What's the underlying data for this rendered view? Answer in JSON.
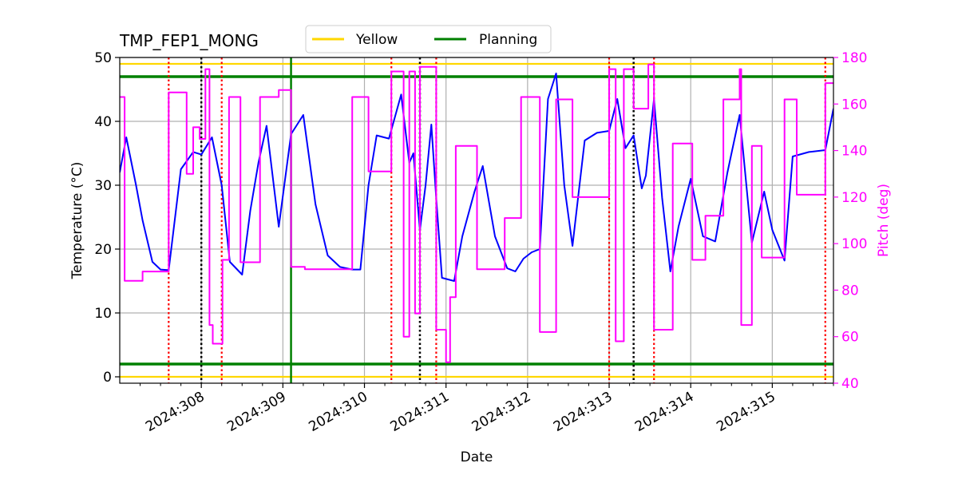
{
  "chart_data": {
    "type": "line",
    "title": "TMP_FEP1_MONG",
    "xlabel": "Date",
    "ylabel": "Temperature ($^\\circ$C)",
    "ylabel_display": "Temperature (°C)",
    "y2label": "Pitch (deg)",
    "xlim": [
      307.0,
      315.75
    ],
    "ylim": [
      -1,
      50
    ],
    "y2lim": [
      40,
      180
    ],
    "grid": true,
    "legend_position": "top-center",
    "x_ticks": [
      {
        "value": 308,
        "label": "2024:308"
      },
      {
        "value": 309,
        "label": "2024:309"
      },
      {
        "value": 310,
        "label": "2024:310"
      },
      {
        "value": 311,
        "label": "2024:311"
      },
      {
        "value": 312,
        "label": "2024:312"
      },
      {
        "value": 313,
        "label": "2024:313"
      },
      {
        "value": 314,
        "label": "2024:314"
      },
      {
        "value": 315,
        "label": "2024:315"
      }
    ],
    "y_ticks": [
      0,
      10,
      20,
      30,
      40,
      50
    ],
    "y2_ticks": [
      40,
      60,
      80,
      100,
      120,
      140,
      160,
      180
    ],
    "limits": [
      {
        "name": "Yellow",
        "color": "#ffd700",
        "values": [
          0,
          49
        ]
      },
      {
        "name": "Planning",
        "color": "#008000",
        "values": [
          2,
          47
        ]
      }
    ],
    "planning_marker": {
      "x": 309.1,
      "color": "#008000"
    },
    "red_markers": [
      307.6,
      308.25,
      310.33,
      310.88,
      313.0,
      313.55,
      315.65
    ],
    "black_markers": [
      308.0,
      310.68,
      313.3
    ],
    "series": [
      {
        "name": "",
        "axis": "left",
        "color": "#0000ff",
        "x": [
          307.0,
          307.08,
          307.2,
          307.28,
          307.4,
          307.5,
          307.6,
          307.75,
          307.9,
          308.0,
          308.13,
          308.25,
          308.35,
          308.5,
          308.6,
          308.7,
          308.8,
          308.95,
          309.1,
          309.25,
          309.4,
          309.55,
          309.7,
          309.85,
          309.95,
          310.05,
          310.15,
          310.3,
          310.45,
          310.55,
          310.6,
          310.68,
          310.75,
          310.82,
          310.88,
          310.95,
          311.1,
          311.2,
          311.35,
          311.45,
          311.6,
          311.75,
          311.85,
          311.95,
          312.05,
          312.15,
          312.25,
          312.35,
          312.45,
          312.55,
          312.7,
          312.85,
          313.0,
          313.1,
          313.2,
          313.3,
          313.4,
          313.45,
          313.55,
          313.65,
          313.75,
          313.85,
          314.0,
          314.15,
          314.3,
          314.45,
          314.6,
          314.75,
          314.9,
          315.0,
          315.15,
          315.25,
          315.45,
          315.65,
          315.75
        ],
        "y": [
          32,
          37.5,
          30,
          24.5,
          18,
          16.8,
          16.7,
          32.5,
          35.2,
          34.8,
          37.5,
          30,
          18,
          16,
          26,
          33.5,
          39.3,
          23.5,
          38,
          41,
          27,
          19,
          17.2,
          16.8,
          16.8,
          30,
          37.8,
          37.3,
          44.2,
          33.5,
          35,
          23,
          30,
          39.5,
          28,
          15.5,
          15,
          22,
          29,
          33,
          22,
          17,
          16.5,
          18.5,
          19.5,
          20,
          43.5,
          47.5,
          30,
          20.5,
          37,
          38.2,
          38.5,
          43.5,
          35.8,
          37.8,
          29.5,
          31.5,
          43.5,
          28,
          16.5,
          23.5,
          31,
          22,
          21.2,
          32,
          41,
          21,
          29,
          23,
          18.2,
          34.5,
          35.2,
          35.5,
          42
        ]
      },
      {
        "name": "",
        "axis": "right",
        "color": "#ff00ff",
        "x": [
          307.0,
          307.06,
          307.06,
          307.28,
          307.28,
          307.6,
          307.6,
          307.82,
          307.82,
          307.9,
          307.9,
          307.98,
          307.98,
          308.05,
          308.05,
          308.1,
          308.1,
          308.14,
          308.14,
          308.26,
          308.26,
          308.34,
          308.34,
          308.48,
          308.48,
          308.72,
          308.72,
          308.95,
          308.95,
          309.1,
          309.1,
          309.27,
          309.27,
          309.85,
          309.85,
          310.05,
          310.05,
          310.33,
          310.33,
          310.48,
          310.48,
          310.55,
          310.55,
          310.62,
          310.62,
          310.68,
          310.68,
          310.88,
          310.88,
          311.0,
          311.0,
          311.05,
          311.05,
          311.12,
          311.12,
          311.38,
          311.38,
          311.72,
          311.72,
          311.92,
          311.92,
          312.15,
          312.15,
          312.35,
          312.35,
          312.55,
          312.55,
          313.0,
          313.0,
          313.08,
          313.08,
          313.18,
          313.18,
          313.3,
          313.3,
          313.48,
          313.48,
          313.55,
          313.55,
          313.78,
          313.78,
          314.02,
          314.02,
          314.18,
          314.18,
          314.4,
          314.4,
          314.6,
          314.6,
          314.62,
          314.62,
          314.75,
          314.75,
          314.87,
          314.87,
          315.15,
          315.15,
          315.3,
          315.3,
          315.65,
          315.65,
          315.75
        ],
        "y": [
          163,
          163,
          84,
          84,
          88,
          88,
          165,
          165,
          130,
          130,
          150,
          150,
          145,
          145,
          175,
          175,
          65,
          65,
          57,
          57,
          93,
          93,
          163,
          163,
          92,
          92,
          163,
          163,
          166,
          166,
          90,
          90,
          89,
          89,
          163,
          163,
          131,
          131,
          174,
          174,
          60,
          60,
          174,
          174,
          70,
          70,
          176,
          176,
          63,
          63,
          49,
          49,
          77,
          77,
          142,
          142,
          89,
          89,
          111,
          111,
          163,
          163,
          62,
          62,
          162,
          162,
          120,
          120,
          175,
          175,
          58,
          58,
          175,
          175,
          158,
          158,
          177,
          177,
          63,
          63,
          143,
          143,
          93,
          93,
          112,
          112,
          162,
          162,
          175,
          175,
          65,
          65,
          142,
          142,
          94,
          94,
          162,
          162,
          121,
          121,
          169,
          169
        ]
      }
    ]
  }
}
